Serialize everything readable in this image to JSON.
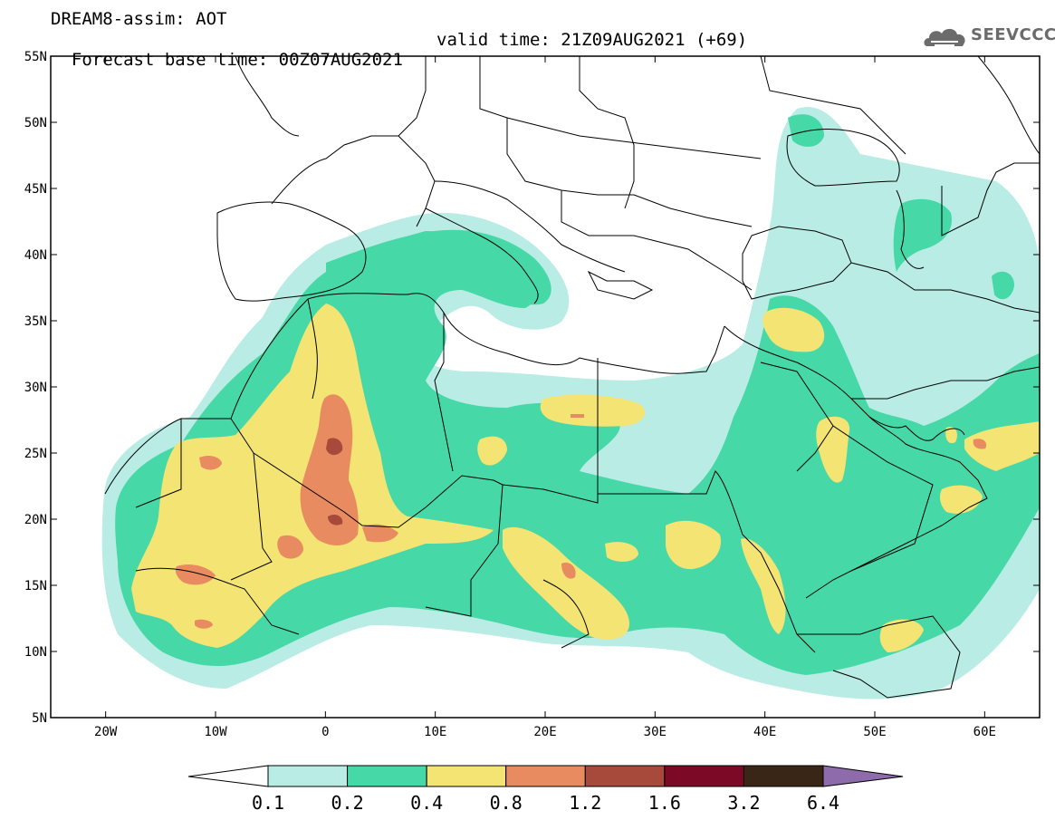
{
  "header": {
    "line1": "DREAM8-assim: AOT",
    "base_time": "Forecast base time: 00Z07AUG2021",
    "valid_time": "valid time: 21Z09AUG2021 (+69)"
  },
  "logo": {
    "text": "SEEVCCC",
    "icon": "cloud-icon"
  },
  "map": {
    "lon_range": [
      -25,
      65
    ],
    "lat_range": [
      5,
      55
    ],
    "lat_ticks": [
      {
        "lat": 55,
        "label": "55N"
      },
      {
        "lat": 50,
        "label": "50N"
      },
      {
        "lat": 45,
        "label": "45N"
      },
      {
        "lat": 40,
        "label": "40N"
      },
      {
        "lat": 35,
        "label": "35N"
      },
      {
        "lat": 30,
        "label": "30N"
      },
      {
        "lat": 25,
        "label": "25N"
      },
      {
        "lat": 20,
        "label": "20N"
      },
      {
        "lat": 15,
        "label": "15N"
      },
      {
        "lat": 10,
        "label": "10N"
      },
      {
        "lat": 5,
        "label": "5N"
      }
    ],
    "lon_ticks": [
      {
        "lon": -20,
        "label": "20W"
      },
      {
        "lon": -10,
        "label": "10W"
      },
      {
        "lon": 0,
        "label": "0"
      },
      {
        "lon": 10,
        "label": "10E"
      },
      {
        "lon": 20,
        "label": "20E"
      },
      {
        "lon": 30,
        "label": "30E"
      },
      {
        "lon": 40,
        "label": "40E"
      },
      {
        "lon": 50,
        "label": "50E"
      },
      {
        "lon": 60,
        "label": "60E"
      }
    ]
  },
  "colorbar": {
    "under_color": "#ffffff",
    "over_color": "#8e6bab",
    "bins": [
      {
        "color": "#b8ece4"
      },
      {
        "color": "#47d8a8"
      },
      {
        "color": "#f3e473"
      },
      {
        "color": "#e98b60"
      },
      {
        "color": "#a84a3b"
      },
      {
        "color": "#7c0a26"
      },
      {
        "color": "#3a2616"
      }
    ],
    "labels": [
      "0.1",
      "0.2",
      "0.4",
      "0.8",
      "1.2",
      "1.6",
      "3.2",
      "6.4"
    ]
  }
}
